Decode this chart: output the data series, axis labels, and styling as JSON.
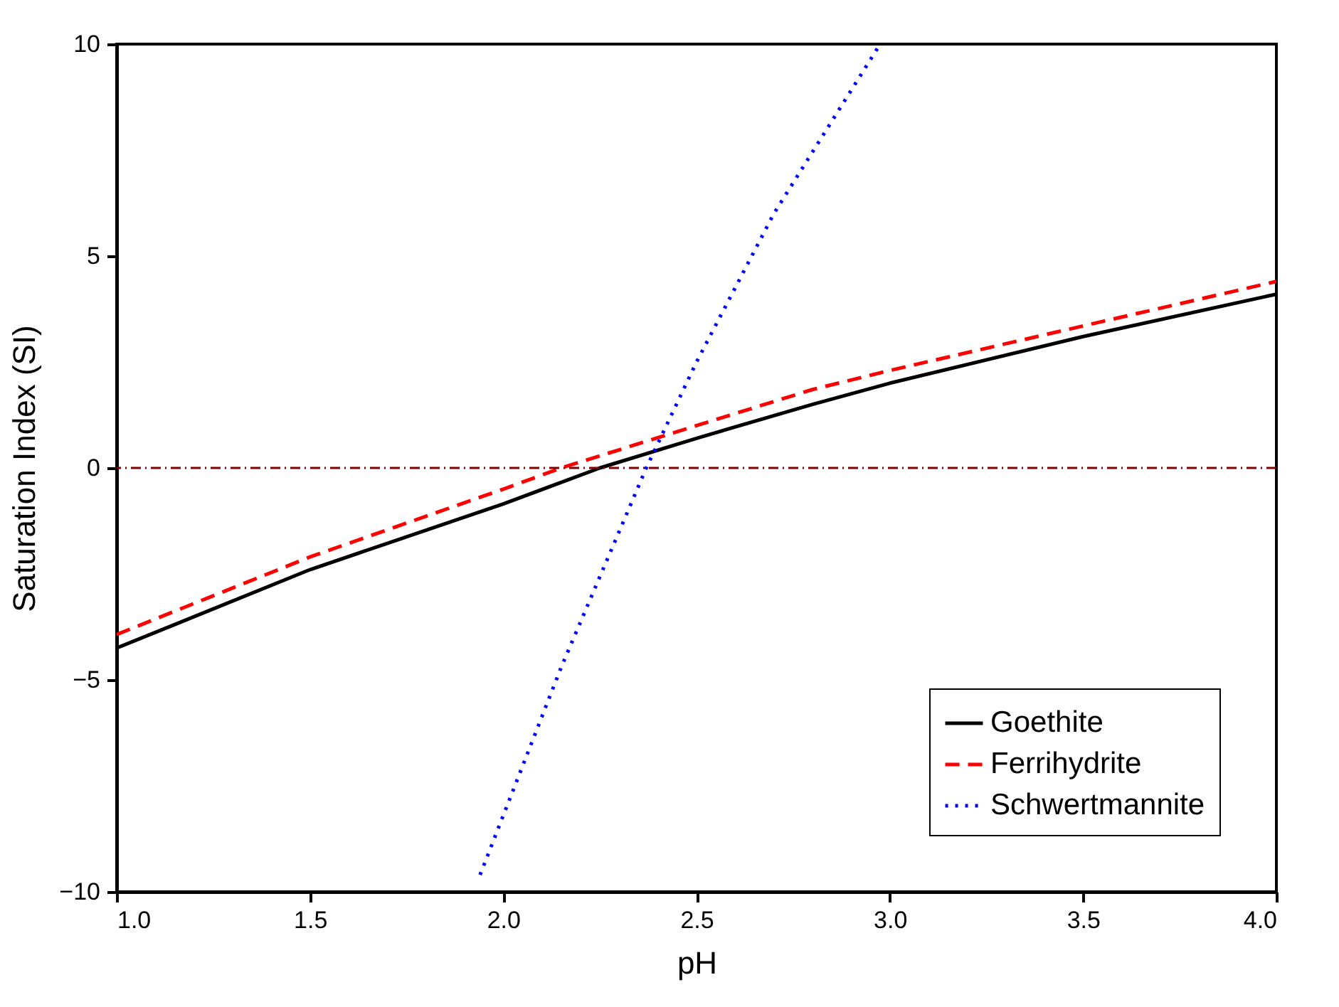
{
  "chart_data": {
    "type": "line",
    "xlabel": "pH",
    "ylabel": "Saturation Index (SI)",
    "xlim": [
      1,
      4
    ],
    "ylim": [
      -10,
      10
    ],
    "xticks": [
      {
        "value": 1,
        "label": "1.0"
      },
      {
        "value": 1.5,
        "label": "1.5"
      },
      {
        "value": 2,
        "label": "2.0"
      },
      {
        "value": 2.5,
        "label": "2.5"
      },
      {
        "value": 3,
        "label": "3.0"
      },
      {
        "value": 3.5,
        "label": "3.5"
      },
      {
        "value": 4,
        "label": "4.0"
      }
    ],
    "yticks": [
      -10,
      -5,
      0,
      5,
      10
    ],
    "grid": false,
    "legend": "bottom right",
    "series": [
      {
        "name": "Goethite",
        "color": "#000000",
        "line_style": "solid",
        "x": [
          1,
          1.5,
          2,
          2.25,
          2.5,
          2.8,
          3,
          3.5,
          4
        ],
        "values": [
          -4.25,
          -2.4,
          -0.85,
          0,
          0.7,
          1.5,
          2.0,
          3.1,
          4.1
        ]
      },
      {
        "name": "Ferrihydrite",
        "color": "#ff0000",
        "line_style": "dashed",
        "x": [
          1,
          1.5,
          2,
          2.15,
          2.5,
          2.8,
          3,
          3.5,
          4
        ],
        "values": [
          -3.93,
          -2.1,
          -0.5,
          0,
          1.0,
          1.85,
          2.3,
          3.35,
          4.4
        ]
      },
      {
        "name": "Schwertmannite",
        "color": "#0000ff",
        "line_style": "dotted",
        "x": [
          1.94,
          2.15,
          2.37,
          2.5,
          2.7,
          2.975
        ],
        "values": [
          -9.6,
          -4.7,
          0,
          2.5,
          6.0,
          10
        ]
      }
    ],
    "ref_lines": [
      {
        "axis": "y",
        "value": 0,
        "color": "#800000",
        "line_style": "dashdot"
      }
    ]
  }
}
